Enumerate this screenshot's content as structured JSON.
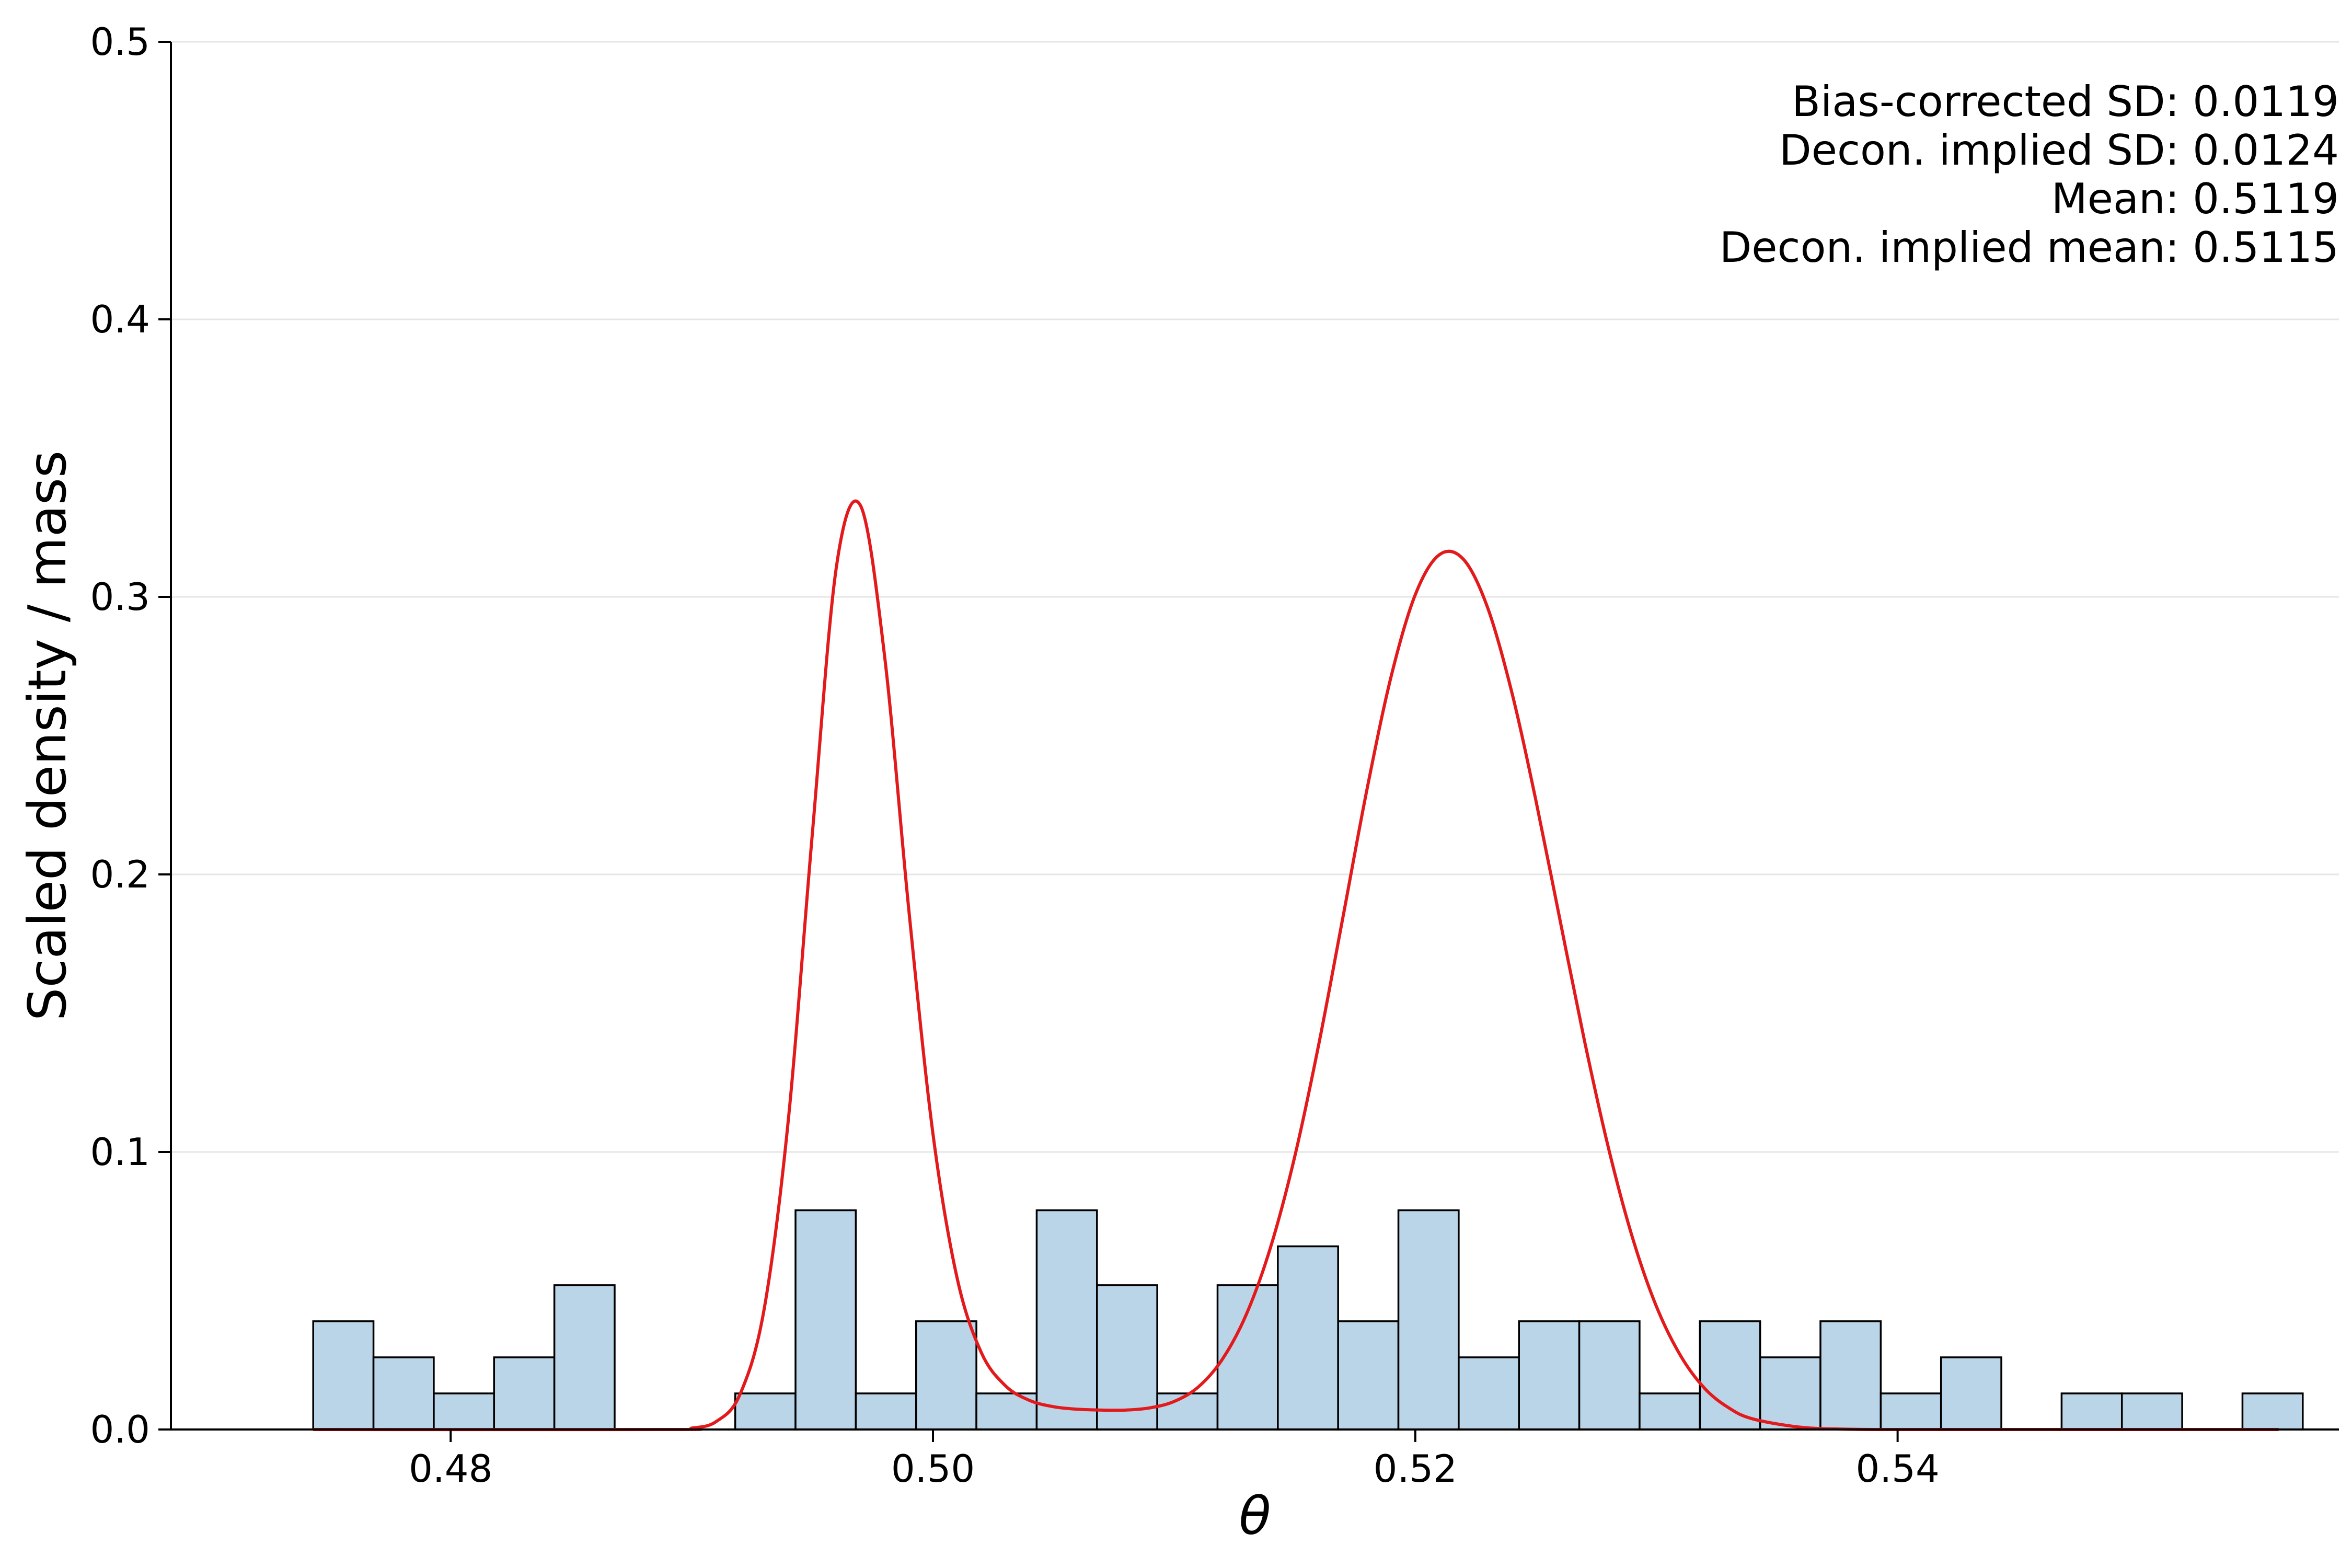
{
  "chart_data": {
    "type": "bar",
    "xlabel": "θ",
    "ylabel": "Scaled density / mass",
    "xlim": [
      0.4684,
      0.5583
    ],
    "ylim": [
      0.0,
      0.5
    ],
    "xticks": [
      0.48,
      0.5,
      0.52,
      0.54
    ],
    "xtick_labels": [
      "0.48",
      "0.50",
      "0.52",
      "0.54"
    ],
    "yticks": [
      0.0,
      0.1,
      0.2,
      0.3,
      0.4,
      0.5
    ],
    "ytick_labels": [
      "0.0",
      "0.1",
      "0.2",
      "0.3",
      "0.4",
      "0.5"
    ],
    "grid": "horizontal",
    "colors": {
      "bars": "#bad4e8",
      "bar_edge": "#000000",
      "curve": "#e31a1c",
      "grid": "#e6e6e6"
    },
    "histogram": {
      "bin_start": 0.4743,
      "bin_width": 0.0025,
      "values": [
        0.039,
        0.026,
        0.013,
        0.026,
        0.052,
        0,
        0,
        0.013,
        0.079,
        0.013,
        0.039,
        0.013,
        0.079,
        0.052,
        0.013,
        0.052,
        0.066,
        0.039,
        0.079,
        0.026,
        0.039,
        0.039,
        0.013,
        0.039,
        0.026,
        0.039,
        0.013,
        0.026,
        0,
        0.013,
        0.013,
        0,
        0.013
      ]
    },
    "curve": {
      "x": [
        0.4743,
        0.489,
        0.49,
        0.491,
        0.492,
        0.493,
        0.494,
        0.495,
        0.496,
        0.497,
        0.498,
        0.499,
        0.5,
        0.501,
        0.502,
        0.503,
        0.504,
        0.505,
        0.506,
        0.507,
        0.508,
        0.509,
        0.51,
        0.511,
        0.512,
        0.513,
        0.514,
        0.515,
        0.516,
        0.517,
        0.518,
        0.519,
        0.52,
        0.521,
        0.522,
        0.523,
        0.524,
        0.525,
        0.526,
        0.527,
        0.528,
        0.529,
        0.53,
        0.531,
        0.532,
        0.533,
        0.534,
        0.536,
        0.538,
        0.54,
        0.545,
        0.5558
      ],
      "y": [
        0.0,
        0.0,
        0.0005,
        0.0028,
        0.0127,
        0.0434,
        0.1114,
        0.2149,
        0.3111,
        0.3328,
        0.2782,
        0.1871,
        0.1065,
        0.0546,
        0.0278,
        0.0158,
        0.0105,
        0.0082,
        0.0073,
        0.007,
        0.007,
        0.0078,
        0.0101,
        0.0153,
        0.0253,
        0.0416,
        0.0657,
        0.0983,
        0.1389,
        0.1846,
        0.2308,
        0.2714,
        0.3008,
        0.3152,
        0.3135,
        0.2961,
        0.2657,
        0.2267,
        0.1836,
        0.1407,
        0.1018,
        0.0693,
        0.0443,
        0.0266,
        0.0148,
        0.0078,
        0.0038,
        0.0008,
        0.0001,
        0.0,
        0.0,
        0.0
      ]
    },
    "annotations": [
      "Bias-corrected SD: 0.0119",
      "Decon. implied SD: 0.0124",
      "Mean: 0.5119",
      "Decon. implied mean: 0.5115"
    ]
  }
}
